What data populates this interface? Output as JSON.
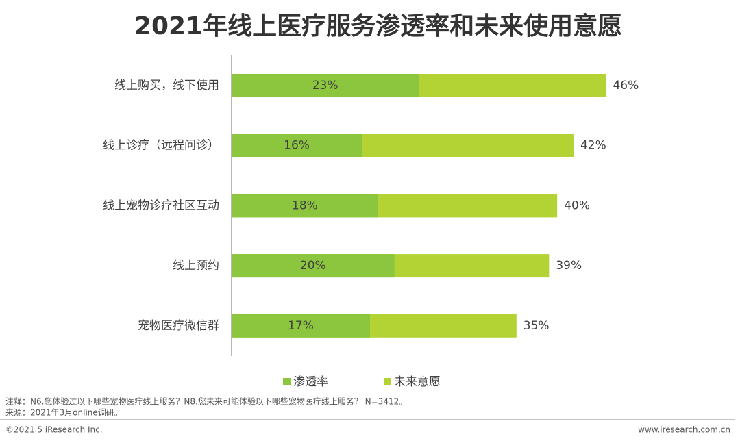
{
  "chart_data": {
    "type": "overlap-bar",
    "title": "2021年线上医疗服务渗透率和未来使用意愿",
    "categories": [
      "线上购买，线下使用",
      "线上诊疗（远程问诊）",
      "线上宠物诊疗社区互动",
      "线上预约",
      "宠物医疗微信群"
    ],
    "series": [
      {
        "name": "未来意愿",
        "color": "#b3d335",
        "values": [
          46,
          42,
          40,
          39,
          35
        ],
        "value_labels": [
          "46%",
          "42%",
          "40%",
          "39%",
          "35%"
        ]
      },
      {
        "name": "渗透率",
        "color": "#8cc63e",
        "values": [
          23,
          16,
          18,
          20,
          17
        ],
        "value_labels": [
          "23%",
          "16%",
          "18%",
          "20%",
          "17%"
        ]
      }
    ],
    "legend_order": [
      1,
      0
    ],
    "note": "注释：N6.您体验过以下哪些宠物医疗线上服务？N8.您未来可能体验以下哪些宠物医疗线上服务？ N=3412。",
    "source": "来源：2021年3月online调研。",
    "copyright": "©2021.5 iResearch Inc.",
    "website": "www.iresearch.com.cn"
  }
}
